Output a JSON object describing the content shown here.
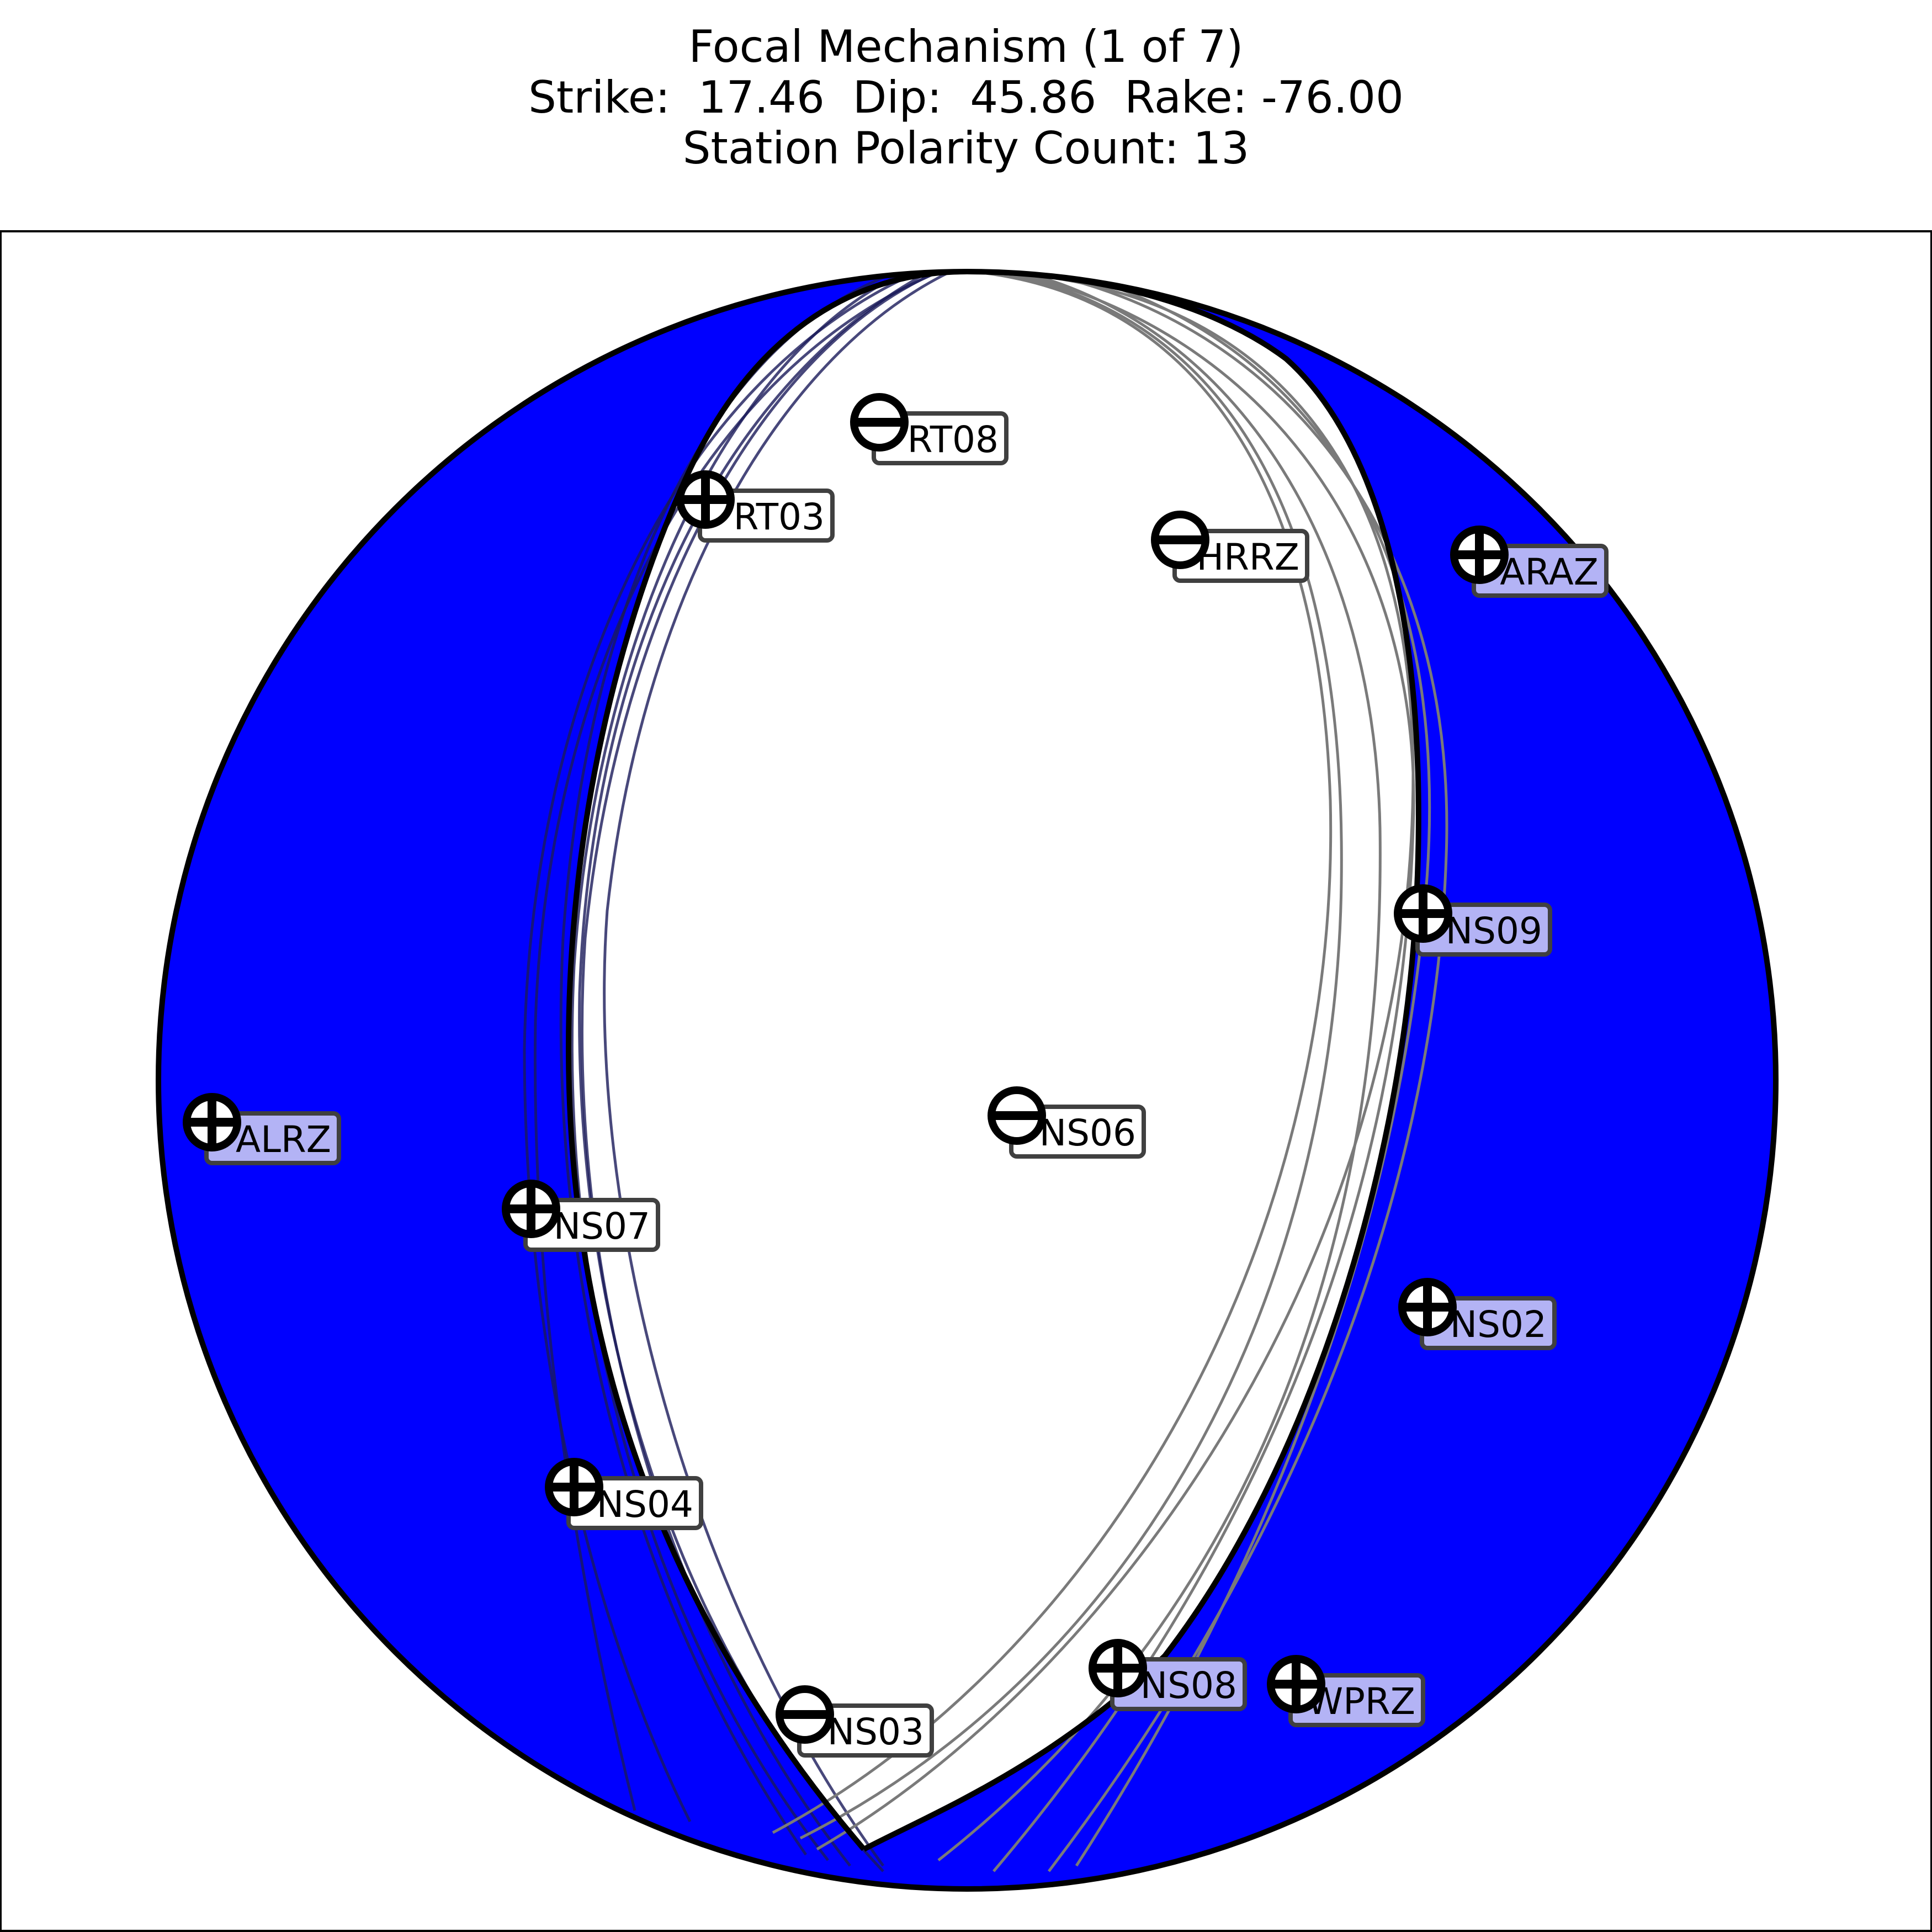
{
  "title": {
    "line1": "Focal Mechanism (1 of 7)",
    "line2": "Strike:  17.46  Dip:  45.86  Rake: -76.00",
    "line3": "Station Polarity Count: 13"
  },
  "colors": {
    "compression_fill": "#0000ff",
    "dilatation_fill": "#ffffff",
    "outline": "#000000",
    "alt_planes": "#7a7a7a",
    "label_up_bg": "#b3b3f5",
    "label_down_bg": "#ffffff"
  },
  "stations": [
    {
      "name": "RT08",
      "polarity": "-",
      "label_bg": "white"
    },
    {
      "name": "RT03",
      "polarity": "+",
      "label_bg": "white"
    },
    {
      "name": "HRRZ",
      "polarity": "-",
      "label_bg": "white"
    },
    {
      "name": "ARAZ",
      "polarity": "+",
      "label_bg": "blue"
    },
    {
      "name": "NS09",
      "polarity": "+",
      "label_bg": "blue"
    },
    {
      "name": "ALRZ",
      "polarity": "+",
      "label_bg": "blue"
    },
    {
      "name": "NS06",
      "polarity": "-",
      "label_bg": "white"
    },
    {
      "name": "NS07",
      "polarity": "+",
      "label_bg": "white"
    },
    {
      "name": "NS02",
      "polarity": "+",
      "label_bg": "blue"
    },
    {
      "name": "NS04",
      "polarity": "+",
      "label_bg": "white"
    },
    {
      "name": "NS08",
      "polarity": "+",
      "label_bg": "blue"
    },
    {
      "name": "WPRZ",
      "polarity": "+",
      "label_bg": "blue"
    },
    {
      "name": "NS03",
      "polarity": "-",
      "label_bg": "white"
    }
  ]
}
